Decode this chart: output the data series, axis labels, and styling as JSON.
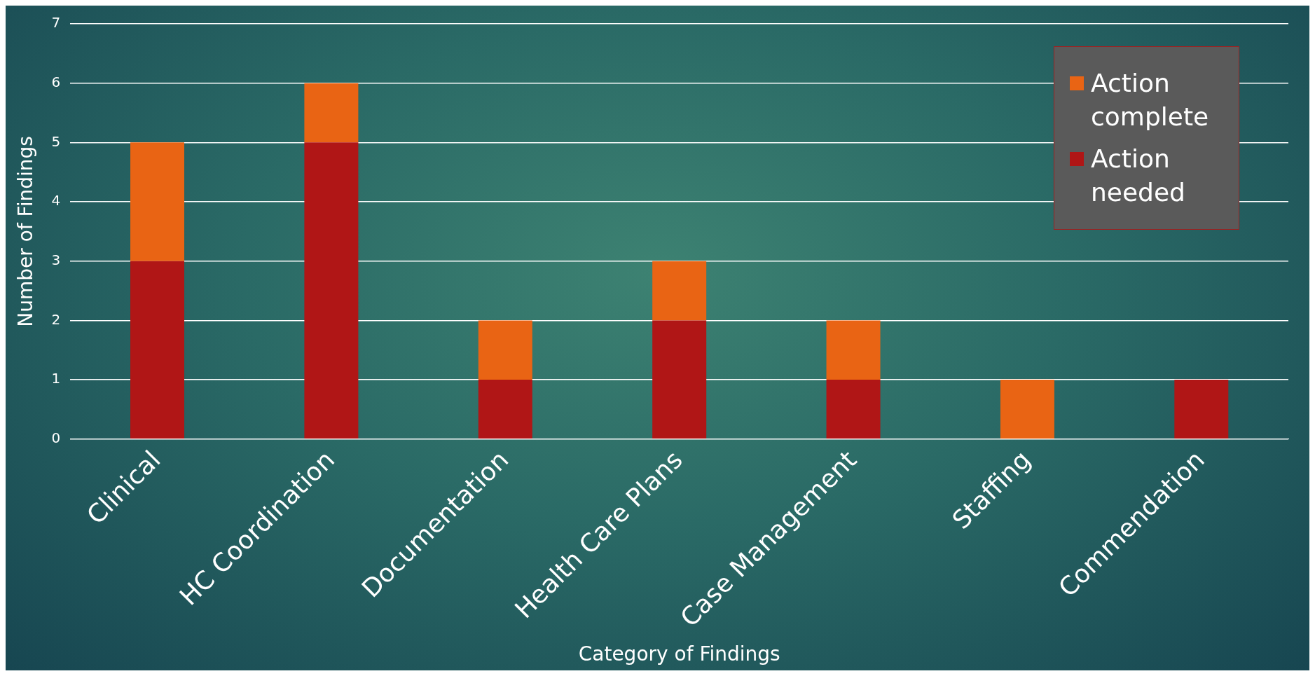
{
  "chart_data": {
    "type": "bar",
    "stacked": true,
    "xlabel": "Category of Findings",
    "ylabel": "Number of Findings",
    "categories": [
      "Clinical",
      "HC Coordination",
      "Documentation",
      "Health Care Plans",
      "Case Management",
      "Staffing",
      "Commendation"
    ],
    "series": [
      {
        "name": "Action needed",
        "color": "#b01616",
        "values": [
          3,
          5,
          1,
          2,
          1,
          0,
          1
        ]
      },
      {
        "name": "Action complete",
        "color": "#e96414",
        "values": [
          2,
          1,
          1,
          1,
          1,
          1,
          0
        ]
      }
    ],
    "ylim": [
      0,
      7
    ],
    "yticks": [
      0,
      1,
      2,
      3,
      4,
      5,
      6,
      7
    ],
    "grid": "y",
    "legend": "top right"
  }
}
